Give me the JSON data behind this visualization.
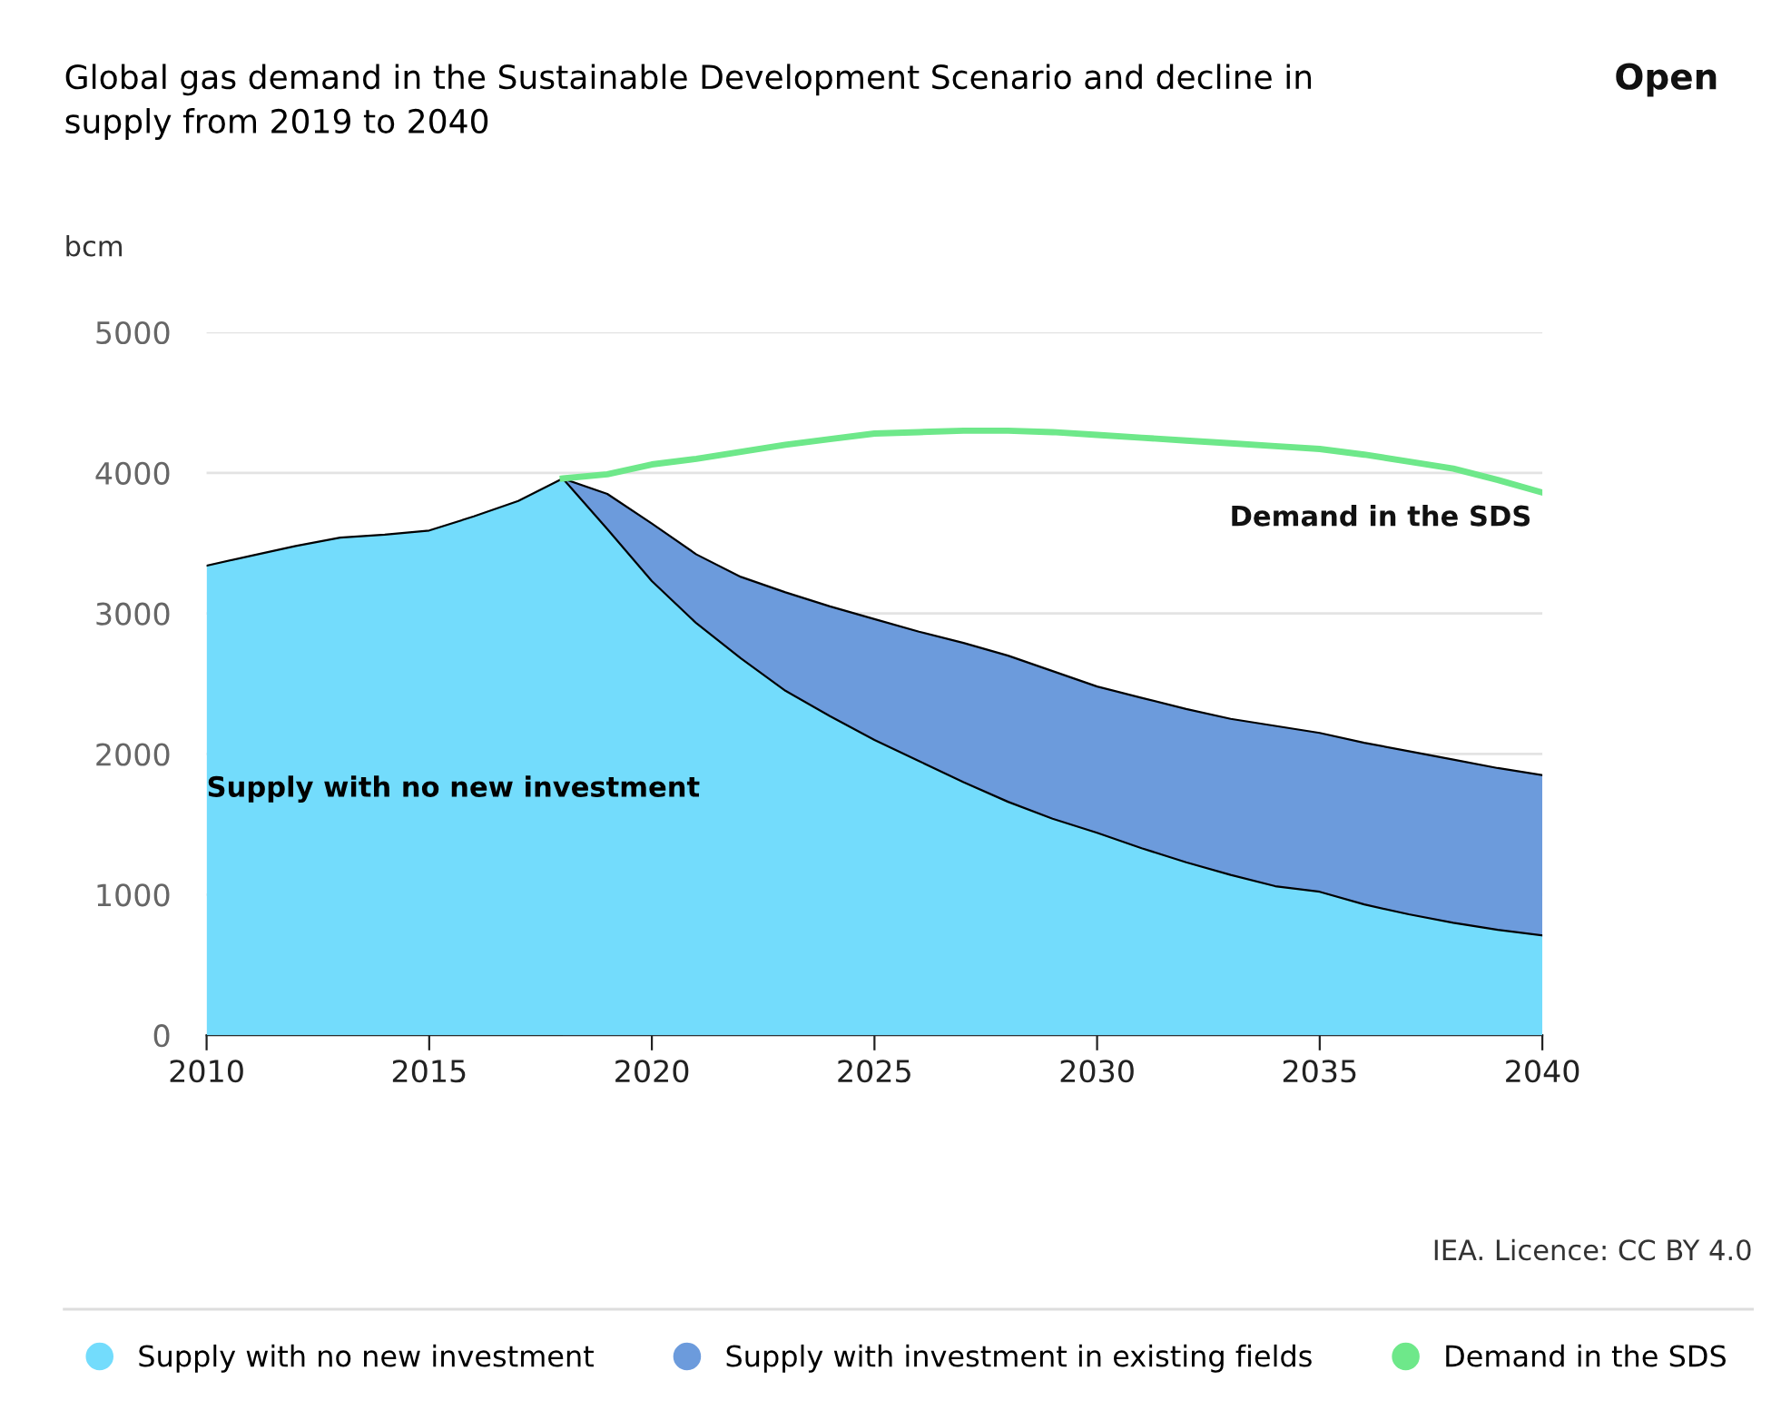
{
  "chart_data": {
    "type": "area",
    "title": "Global gas demand in the Sustainable Development Scenario and decline in supply from 2019 to 2040",
    "ylabel": "bcm",
    "xlim": [
      2010,
      2040
    ],
    "xticks": [
      2010,
      2015,
      2020,
      2025,
      2030,
      2035,
      2040
    ],
    "ylim": [
      0,
      5000
    ],
    "yticks": [
      0,
      1000,
      2000,
      3000,
      4000,
      5000
    ],
    "grid": "y",
    "legend": "bottom",
    "series": [
      {
        "name": "Supply with no new investment",
        "color": "#73dcfc",
        "x": [
          2010,
          2011,
          2012,
          2013,
          2014,
          2015,
          2016,
          2017,
          2018,
          2019,
          2020,
          2021,
          2022,
          2023,
          2024,
          2025,
          2026,
          2027,
          2028,
          2029,
          2030,
          2031,
          2032,
          2033,
          2034,
          2035,
          2036,
          2037,
          2038,
          2039,
          2040
        ],
        "values": [
          3340,
          3410,
          3480,
          3540,
          3560,
          3590,
          3690,
          3800,
          3960,
          3600,
          3230,
          2930,
          2680,
          2450,
          2270,
          2100,
          1950,
          1800,
          1660,
          1540,
          1440,
          1330,
          1230,
          1140,
          1060,
          1020,
          930,
          860,
          800,
          750,
          710
        ]
      },
      {
        "name": "Supply with investment in existing fields",
        "color": "#6c9bdc",
        "x": [
          2018,
          2019,
          2020,
          2021,
          2022,
          2023,
          2024,
          2025,
          2026,
          2027,
          2028,
          2029,
          2030,
          2031,
          2032,
          2033,
          2034,
          2035,
          2036,
          2037,
          2038,
          2039,
          2040
        ],
        "values": [
          3960,
          3850,
          3640,
          3420,
          3260,
          3150,
          3050,
          2960,
          2870,
          2790,
          2700,
          2590,
          2480,
          2400,
          2320,
          2250,
          2200,
          2150,
          2080,
          2020,
          1960,
          1900,
          1850
        ]
      },
      {
        "name": "Demand in the SDS",
        "type": "line",
        "color": "#6ee88a",
        "x": [
          2018,
          2019,
          2020,
          2021,
          2022,
          2023,
          2024,
          2025,
          2026,
          2027,
          2028,
          2029,
          2030,
          2031,
          2032,
          2033,
          2034,
          2035,
          2036,
          2037,
          2038,
          2039,
          2040
        ],
        "values": [
          3960,
          3990,
          4060,
          4100,
          4150,
          4200,
          4240,
          4280,
          4290,
          4300,
          4300,
          4290,
          4270,
          4250,
          4230,
          4210,
          4190,
          4170,
          4130,
          4080,
          4030,
          3950,
          3860
        ]
      }
    ],
    "annotations": [
      {
        "text": "Supply with no new investment",
        "x": 2010,
        "y": 1750
      },
      "Demand in the SDS",
      "IEA. Licence: CC BY 4.0",
      "Open"
    ]
  }
}
